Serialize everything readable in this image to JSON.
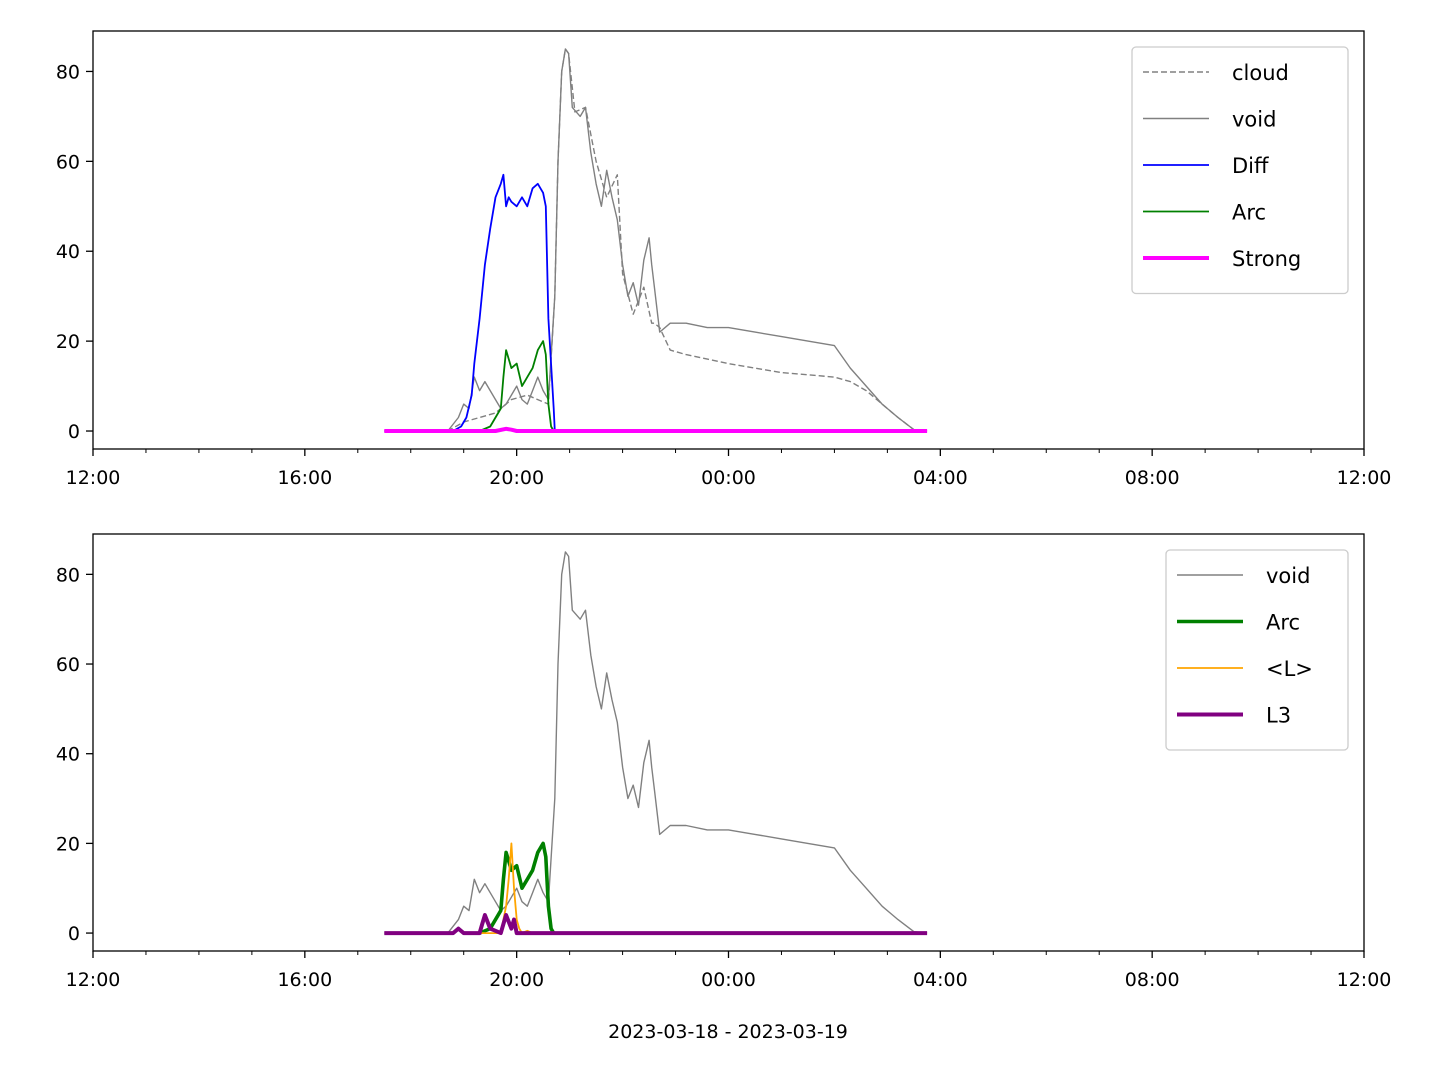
{
  "figure": {
    "xlabel": "2023-03-18 - 2023-03-19"
  },
  "chart_data": [
    {
      "type": "line",
      "x_unit": "time",
      "x_ticks": [
        "12:00",
        "16:00",
        "20:00",
        "00:00",
        "04:00",
        "08:00",
        "12:00"
      ],
      "x_tick_hours": [
        12,
        16,
        20,
        24,
        28,
        32,
        36
      ],
      "x_minor_step_hours": 1,
      "xlim_hours": [
        12,
        36
      ],
      "ylim": [
        -4,
        89
      ],
      "y_ticks": [
        0,
        20,
        40,
        60,
        80
      ],
      "grid": false,
      "legend": "top-right",
      "series": [
        {
          "name": "cloud",
          "color": "#808080",
          "style": "dashed",
          "width": 1.4,
          "x_hours": [
            17.5,
            18.7,
            19.0,
            19.3,
            19.6,
            19.9,
            20.2,
            20.4,
            20.6,
            20.72,
            20.78,
            20.85,
            20.92,
            20.98,
            21.1,
            21.3,
            21.5,
            21.7,
            21.9,
            22.0,
            22.2,
            22.4,
            22.55,
            22.6,
            22.7,
            22.9,
            23.2,
            23.6,
            24.0,
            24.5,
            25.0,
            25.5,
            26.0,
            26.3,
            26.6,
            26.9,
            27.2,
            27.5,
            27.75
          ],
          "values": [
            0,
            0,
            2,
            3,
            4,
            7,
            8,
            7,
            6,
            30,
            60,
            80,
            85,
            84,
            71,
            72,
            60,
            52,
            57,
            35,
            26,
            32,
            24,
            24,
            23,
            18,
            17,
            16,
            15,
            14,
            13,
            12.5,
            12,
            11,
            9,
            6,
            3,
            0.3,
            0
          ]
        },
        {
          "name": "void",
          "color": "#808080",
          "style": "solid",
          "width": 1.4,
          "x_hours": [
            17.5,
            18.7,
            18.9,
            19.0,
            19.1,
            19.2,
            19.3,
            19.4,
            19.5,
            19.6,
            19.7,
            19.8,
            19.9,
            20.0,
            20.1,
            20.2,
            20.3,
            20.4,
            20.5,
            20.6,
            20.72,
            20.78,
            20.85,
            20.92,
            20.98,
            21.05,
            21.2,
            21.3,
            21.4,
            21.5,
            21.6,
            21.7,
            21.8,
            21.9,
            22.0,
            22.1,
            22.2,
            22.3,
            22.4,
            22.5,
            22.55,
            22.6,
            22.7,
            22.9,
            23.2,
            23.6,
            24.0,
            24.5,
            25.0,
            25.5,
            26.0,
            26.3,
            26.6,
            26.9,
            27.2,
            27.5,
            27.75
          ],
          "values": [
            0,
            0,
            3,
            6,
            5,
            12,
            9,
            11,
            9,
            7,
            5,
            6,
            8,
            10,
            7,
            6,
            9,
            12,
            9,
            7,
            30,
            60,
            80,
            85,
            84,
            72,
            70,
            72,
            62,
            55,
            50,
            58,
            52,
            47,
            37,
            30,
            33,
            28,
            38,
            43,
            37,
            32,
            22,
            24,
            24,
            23,
            23,
            22,
            21,
            20,
            19,
            14,
            10,
            6,
            3,
            0.3,
            0
          ]
        },
        {
          "name": "Diff",
          "color": "#0000ff",
          "style": "solid",
          "width": 1.8,
          "x_hours": [
            18.8,
            18.95,
            19.05,
            19.15,
            19.2,
            19.3,
            19.4,
            19.5,
            19.6,
            19.7,
            19.75,
            19.8,
            19.85,
            19.9,
            20.0,
            20.1,
            20.2,
            20.3,
            20.4,
            20.5,
            20.55,
            20.6,
            20.7,
            20.72,
            20.8
          ],
          "values": [
            0,
            1,
            3,
            8,
            15,
            25,
            37,
            45,
            52,
            55,
            57,
            50,
            52,
            51,
            50,
            52,
            50,
            54,
            55,
            53,
            50,
            25,
            5,
            0,
            0
          ]
        },
        {
          "name": "Arc",
          "color": "#008000",
          "style": "solid",
          "width": 1.8,
          "x_hours": [
            19.3,
            19.5,
            19.7,
            19.75,
            19.8,
            19.9,
            20.0,
            20.1,
            20.2,
            20.3,
            20.4,
            20.5,
            20.55,
            20.6,
            20.65,
            20.7
          ],
          "values": [
            0,
            1,
            5,
            12,
            18,
            14,
            15,
            10,
            12,
            14,
            18,
            20,
            17,
            6,
            1,
            0
          ]
        },
        {
          "name": "Strong",
          "color": "#ff00ff",
          "style": "solid",
          "width": 4,
          "x_hours": [
            17.5,
            19.6,
            19.8,
            19.9,
            20.0,
            27.75
          ],
          "values": [
            0,
            0,
            0.5,
            0.3,
            0,
            0
          ]
        }
      ]
    },
    {
      "type": "line",
      "x_unit": "time",
      "x_ticks": [
        "12:00",
        "16:00",
        "20:00",
        "00:00",
        "04:00",
        "08:00",
        "12:00"
      ],
      "x_tick_hours": [
        12,
        16,
        20,
        24,
        28,
        32,
        36
      ],
      "x_minor_step_hours": 1,
      "xlim_hours": [
        12,
        36
      ],
      "ylim": [
        -4,
        89
      ],
      "y_ticks": [
        0,
        20,
        40,
        60,
        80
      ],
      "grid": false,
      "legend": "top-right",
      "series": [
        {
          "name": "void",
          "color": "#808080",
          "style": "solid",
          "width": 1.4,
          "x_hours": [
            17.5,
            18.7,
            18.9,
            19.0,
            19.1,
            19.2,
            19.3,
            19.4,
            19.5,
            19.6,
            19.7,
            19.8,
            19.9,
            20.0,
            20.1,
            20.2,
            20.3,
            20.4,
            20.5,
            20.6,
            20.72,
            20.78,
            20.85,
            20.92,
            20.98,
            21.05,
            21.2,
            21.3,
            21.4,
            21.5,
            21.6,
            21.7,
            21.8,
            21.9,
            22.0,
            22.1,
            22.2,
            22.3,
            22.4,
            22.5,
            22.55,
            22.6,
            22.7,
            22.9,
            23.2,
            23.6,
            24.0,
            24.5,
            25.0,
            25.5,
            26.0,
            26.3,
            26.6,
            26.9,
            27.2,
            27.5,
            27.75
          ],
          "values": [
            0,
            0,
            3,
            6,
            5,
            12,
            9,
            11,
            9,
            7,
            5,
            6,
            8,
            10,
            7,
            6,
            9,
            12,
            9,
            7,
            30,
            60,
            80,
            85,
            84,
            72,
            70,
            72,
            62,
            55,
            50,
            58,
            52,
            47,
            37,
            30,
            33,
            28,
            38,
            43,
            37,
            32,
            22,
            24,
            24,
            23,
            23,
            22,
            21,
            20,
            19,
            14,
            10,
            6,
            3,
            0.3,
            0
          ]
        },
        {
          "name": "Arc",
          "color": "#008000",
          "style": "solid",
          "width": 3.6,
          "x_hours": [
            19.3,
            19.5,
            19.7,
            19.75,
            19.8,
            19.9,
            20.0,
            20.1,
            20.2,
            20.3,
            20.4,
            20.5,
            20.55,
            20.6,
            20.65,
            20.7
          ],
          "values": [
            0,
            1,
            5,
            12,
            18,
            14,
            15,
            10,
            12,
            14,
            18,
            20,
            17,
            6,
            1,
            0
          ]
        },
        {
          "name": "<L>",
          "color": "#ffa500",
          "style": "solid",
          "width": 1.8,
          "x_hours": [
            19.3,
            19.7,
            19.75,
            19.8,
            19.85,
            19.9,
            19.95,
            20.0,
            20.05,
            20.1,
            20.2,
            20.3
          ],
          "values": [
            0,
            0,
            3,
            6,
            12,
            20,
            10,
            3,
            1,
            0,
            0.5,
            0
          ]
        },
        {
          "name": "L3",
          "color": "#800080",
          "style": "solid",
          "width": 4,
          "x_hours": [
            17.5,
            18.8,
            18.9,
            19.0,
            19.05,
            19.3,
            19.35,
            19.4,
            19.5,
            19.6,
            19.7,
            19.75,
            19.8,
            19.9,
            19.95,
            20.0,
            27.75
          ],
          "values": [
            0,
            0,
            1,
            0,
            0,
            0,
            2,
            4,
            1,
            0.5,
            0,
            2,
            4,
            1,
            3,
            0,
            0
          ]
        }
      ]
    }
  ]
}
